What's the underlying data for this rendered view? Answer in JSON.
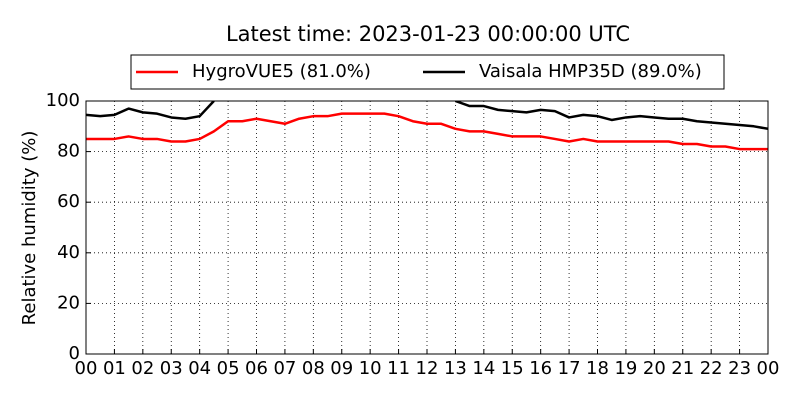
{
  "chart_data": {
    "type": "line",
    "title": "Latest time: 2023-01-23 00:00:00 UTC",
    "y_label": "Relative humidity (%)",
    "x": [
      0,
      0.5,
      1,
      1.5,
      2,
      2.5,
      3,
      3.5,
      4,
      4.5,
      5,
      5.5,
      6,
      6.5,
      7,
      7.5,
      8,
      8.5,
      9,
      9.5,
      10,
      10.5,
      11,
      11.5,
      12,
      12.5,
      13,
      13.5,
      14,
      14.5,
      15,
      15.5,
      16,
      16.5,
      17,
      17.5,
      18,
      18.5,
      19,
      19.5,
      20,
      20.5,
      21,
      21.5,
      22,
      22.5,
      23,
      23.5,
      24
    ],
    "series": [
      {
        "name": "HygroVUE5 (81.0%)",
        "color": "#ff0000",
        "values": [
          85,
          85,
          85,
          86,
          85,
          85,
          84,
          84,
          85,
          88,
          92,
          92,
          93,
          92,
          91,
          93,
          94,
          94,
          95,
          95,
          95,
          95,
          94,
          92,
          91,
          91,
          89,
          88,
          88,
          87,
          86,
          86,
          86,
          85,
          84,
          85,
          84,
          84,
          84,
          84,
          84,
          84,
          83,
          83,
          82,
          82,
          81,
          81,
          81
        ]
      },
      {
        "name": "Vaisala HMP35D (89.0%)",
        "color": "#000000",
        "values": [
          94.5,
          94,
          94.5,
          97,
          95.5,
          95,
          93.5,
          93,
          94,
          100,
          null,
          null,
          null,
          null,
          null,
          null,
          null,
          null,
          null,
          null,
          null,
          null,
          null,
          null,
          null,
          null,
          100,
          98,
          98,
          96.5,
          96,
          95.5,
          96.5,
          96,
          93.5,
          94.5,
          94,
          92.5,
          93.5,
          94,
          93.5,
          93,
          93,
          92,
          91.5,
          91,
          90.5,
          90,
          89
        ]
      }
    ],
    "xlim": [
      0,
      24
    ],
    "ylim": [
      0,
      100
    ],
    "xticks": [
      {
        "value": 0,
        "label": "00"
      },
      {
        "value": 1,
        "label": "01"
      },
      {
        "value": 2,
        "label": "02"
      },
      {
        "value": 3,
        "label": "03"
      },
      {
        "value": 4,
        "label": "04"
      },
      {
        "value": 5,
        "label": "05"
      },
      {
        "value": 6,
        "label": "06"
      },
      {
        "value": 7,
        "label": "07"
      },
      {
        "value": 8,
        "label": "08"
      },
      {
        "value": 9,
        "label": "09"
      },
      {
        "value": 10,
        "label": "10"
      },
      {
        "value": 11,
        "label": "11"
      },
      {
        "value": 12,
        "label": "12"
      },
      {
        "value": 13,
        "label": "13"
      },
      {
        "value": 14,
        "label": "14"
      },
      {
        "value": 15,
        "label": "15"
      },
      {
        "value": 16,
        "label": "16"
      },
      {
        "value": 17,
        "label": "17"
      },
      {
        "value": 18,
        "label": "18"
      },
      {
        "value": 19,
        "label": "19"
      },
      {
        "value": 20,
        "label": "20"
      },
      {
        "value": 21,
        "label": "21"
      },
      {
        "value": 22,
        "label": "22"
      },
      {
        "value": 23,
        "label": "23"
      },
      {
        "value": 24,
        "label": "00"
      }
    ],
    "yticks": [
      0,
      20,
      40,
      60,
      80,
      100
    ],
    "grid": true
  }
}
